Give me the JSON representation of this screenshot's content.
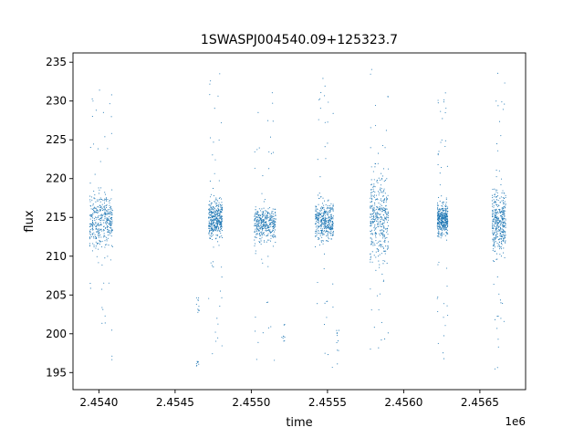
{
  "chart_data": {
    "type": "scatter",
    "title": "1SWASPJ004540.09+125323.7",
    "xlabel": "time",
    "ylabel": "flux",
    "x_offset_label": "1e6",
    "xlim": [
      2.45383,
      2.4568
    ],
    "ylim": [
      192.8,
      236.2
    ],
    "x_ticks": [
      2.454,
      2.4545,
      2.455,
      2.4555,
      2.456,
      2.4565
    ],
    "x_tick_labels": [
      "2.4540",
      "2.4545",
      "2.4550",
      "2.4555",
      "2.4560",
      "2.4565"
    ],
    "y_ticks": [
      195,
      200,
      205,
      210,
      215,
      220,
      225,
      230,
      235
    ],
    "y_tick_labels": [
      "195",
      "200",
      "205",
      "210",
      "215",
      "220",
      "225",
      "230",
      "235"
    ],
    "grid": false,
    "marker_color": "#1f77b4",
    "series": [
      {
        "clusters": [
          {
            "x_start": 2.45394,
            "x_end": 2.45409,
            "center": 214.5,
            "spread": 2.6,
            "min": 196.5,
            "max": 233.0
          },
          {
            "x_start": 2.45472,
            "x_end": 2.45481,
            "center": 214.8,
            "spread": 1.7,
            "min": 195.5,
            "max": 234.5
          },
          {
            "x_start": 2.45502,
            "x_end": 2.45516,
            "center": 214.2,
            "spread": 1.4,
            "min": 195.5,
            "max": 232.0
          },
          {
            "x_start": 2.45542,
            "x_end": 2.45554,
            "center": 214.6,
            "spread": 1.7,
            "min": 195.5,
            "max": 234.0
          },
          {
            "x_start": 2.45578,
            "x_end": 2.4559,
            "center": 214.8,
            "spread": 3.8,
            "min": 195.0,
            "max": 234.5
          },
          {
            "x_start": 2.45622,
            "x_end": 2.45629,
            "center": 214.8,
            "spread": 1.5,
            "min": 196.5,
            "max": 232.0
          },
          {
            "x_start": 2.45658,
            "x_end": 2.45667,
            "center": 214.5,
            "spread": 2.8,
            "min": 195.0,
            "max": 234.5
          }
        ],
        "outlier_groups": [
          {
            "x": 2.45465,
            "y_min": 202.5,
            "y_max": 204.8
          },
          {
            "x": 2.45465,
            "y_min": 195.8,
            "y_max": 196.5
          },
          {
            "x": 2.45521,
            "y_min": 199.0,
            "y_max": 201.2
          },
          {
            "x": 2.45557,
            "y_min": 195.5,
            "y_max": 200.5
          }
        ]
      }
    ]
  }
}
